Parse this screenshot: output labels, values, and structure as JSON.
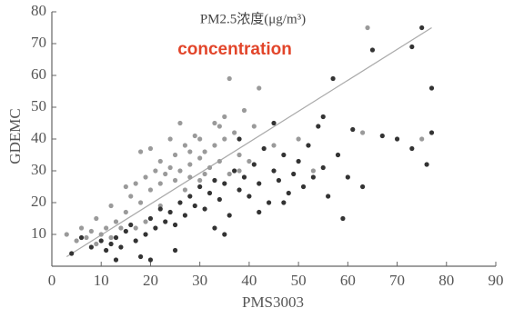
{
  "chart_data": {
    "type": "scatter",
    "title": "PM2.5浓度(μg/m³)",
    "annotation": "concentration",
    "xlabel": "PMS3003",
    "ylabel": "GDEMC",
    "xlim": [
      0,
      90
    ],
    "xticks": [
      0,
      10,
      20,
      30,
      40,
      50,
      60,
      70,
      80,
      90
    ],
    "ylim": [
      0,
      80
    ],
    "yticks": [
      10,
      20,
      30,
      40,
      50,
      60,
      70,
      80
    ],
    "series": [
      {
        "color": "#9a9a9a",
        "x": [
          3,
          5,
          6,
          7,
          8,
          9,
          10,
          11,
          12,
          13,
          14,
          15,
          15,
          16,
          17,
          18,
          18,
          19,
          20,
          21,
          22,
          22,
          23,
          24,
          25,
          25,
          26,
          27,
          28,
          28,
          29,
          30,
          30,
          31,
          32,
          33,
          33,
          34,
          35,
          35,
          36,
          37,
          38,
          39,
          40,
          41,
          42,
          36,
          20,
          24,
          26,
          30,
          45,
          50,
          53,
          64,
          63,
          75,
          17,
          12,
          9,
          27,
          34,
          38,
          28,
          31,
          19,
          22
        ],
        "values": [
          10,
          8,
          12,
          9,
          11,
          7,
          10,
          12,
          9,
          14,
          12,
          17,
          25,
          22,
          26,
          20,
          36,
          28,
          24,
          30,
          26,
          33,
          29,
          31,
          27,
          35,
          30,
          38,
          32,
          28,
          41,
          34,
          27,
          36,
          31,
          45,
          38,
          33,
          40,
          47,
          29,
          42,
          35,
          49,
          33,
          44,
          56,
          59,
          37,
          40,
          45,
          40,
          38,
          40,
          30,
          75,
          42,
          40,
          12,
          19,
          15,
          24,
          44,
          30,
          36,
          29,
          14,
          19
        ]
      },
      {
        "color": "#333333",
        "x": [
          4,
          6,
          8,
          10,
          11,
          12,
          13,
          14,
          15,
          16,
          17,
          18,
          19,
          20,
          21,
          22,
          23,
          24,
          25,
          26,
          27,
          28,
          29,
          30,
          31,
          32,
          33,
          34,
          35,
          36,
          37,
          38,
          39,
          40,
          41,
          42,
          43,
          44,
          45,
          46,
          47,
          48,
          49,
          50,
          51,
          52,
          53,
          54,
          55,
          56,
          57,
          58,
          59,
          60,
          61,
          63,
          65,
          67,
          70,
          73,
          73,
          75,
          76,
          77,
          77,
          13,
          25,
          35,
          42,
          47,
          55,
          45,
          38,
          33,
          20
        ],
        "values": [
          4,
          9,
          6,
          8,
          5,
          7,
          9,
          6,
          11,
          13,
          8,
          3,
          10,
          15,
          12,
          18,
          14,
          17,
          13,
          20,
          16,
          22,
          19,
          25,
          18,
          23,
          27,
          21,
          26,
          16,
          30,
          24,
          28,
          22,
          32,
          26,
          37,
          20,
          30,
          27,
          35,
          23,
          29,
          33,
          25,
          38,
          28,
          44,
          31,
          22,
          59,
          35,
          15,
          28,
          43,
          25,
          68,
          41,
          40,
          69,
          37,
          75,
          32,
          56,
          42,
          2,
          5,
          10,
          17,
          20,
          47,
          45,
          40,
          12,
          2
        ]
      }
    ],
    "trend_line": {
      "color": "#aaaaaa",
      "x": [
        3,
        77
      ],
      "y": [
        3,
        75
      ]
    }
  }
}
